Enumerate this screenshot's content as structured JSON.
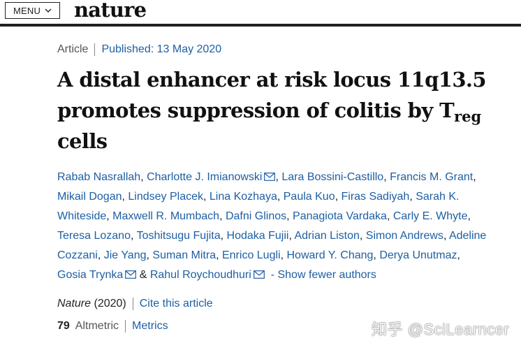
{
  "header": {
    "menu_label": "MENU",
    "logo": "nature"
  },
  "article": {
    "type": "Article",
    "published": "Published: 13 May 2020",
    "title_main": "A distal enhancer at risk locus 11q13.5 promotes suppression of colitis by T",
    "title_sub": "reg",
    "title_tail": "cells"
  },
  "authors": [
    {
      "name": "Rabab Nasrallah",
      "mail": false
    },
    {
      "name": "Charlotte J. Imianowski",
      "mail": true
    },
    {
      "name": "Lara Bossini-Castillo",
      "mail": false
    },
    {
      "name": "Francis M. Grant",
      "mail": false
    },
    {
      "name": "Mikail Dogan",
      "mail": false
    },
    {
      "name": "Lindsey Placek",
      "mail": false
    },
    {
      "name": "Lina Kozhaya",
      "mail": false
    },
    {
      "name": "Paula Kuo",
      "mail": false
    },
    {
      "name": "Firas Sadiyah",
      "mail": false
    },
    {
      "name": "Sarah K. Whiteside",
      "mail": false
    },
    {
      "name": "Maxwell R. Mumbach",
      "mail": false
    },
    {
      "name": "Dafni Glinos",
      "mail": false
    },
    {
      "name": "Panagiota Vardaka",
      "mail": false
    },
    {
      "name": "Carly E. Whyte",
      "mail": false
    },
    {
      "name": "Teresa Lozano",
      "mail": false
    },
    {
      "name": "Toshitsugu Fujita",
      "mail": false
    },
    {
      "name": "Hodaka Fujii",
      "mail": false
    },
    {
      "name": "Adrian Liston",
      "mail": false
    },
    {
      "name": "Simon Andrews",
      "mail": false
    },
    {
      "name": "Adeline Cozzani",
      "mail": false
    },
    {
      "name": "Jie Yang",
      "mail": false
    },
    {
      "name": "Suman Mitra",
      "mail": false
    },
    {
      "name": "Enrico Lugli",
      "mail": false
    },
    {
      "name": "Howard Y. Chang",
      "mail": false
    },
    {
      "name": "Derya Unutmaz",
      "mail": false
    },
    {
      "name": "Gosia Trynka",
      "mail": true
    },
    {
      "name": "Rahul Roychoudhuri",
      "mail": true
    }
  ],
  "authors_joiner_last": " & ",
  "show_fewer": "- Show fewer authors",
  "citation": {
    "journal": "Nature",
    "year": "(2020)",
    "cite_link": "Cite this article"
  },
  "metrics": {
    "altmetric_score": "79",
    "altmetric_label": "Altmetric",
    "metrics_link": "Metrics"
  },
  "watermark": "知乎 @SciLearncer",
  "colors": {
    "link": "#1e5fa3",
    "text": "#222222"
  }
}
